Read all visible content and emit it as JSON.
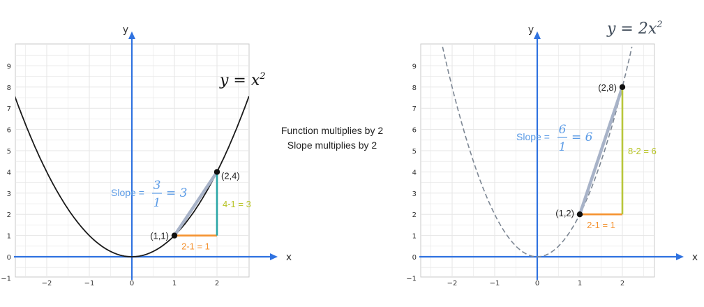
{
  "colors": {
    "axis": "#2f72e0",
    "grid": "#e6e6e6",
    "frame": "#c9c9c9",
    "curve_left": "#1a1a1a",
    "curve_right": "#7d8794",
    "run": "#f5922f",
    "rise_left": "#2aa6a6",
    "rise_right": "#b8c63a",
    "rise_label": "#b8c426",
    "slope_label": "#5b9be6",
    "secant": "#a8b3c8",
    "point": "#111111"
  },
  "center_text": {
    "line1": "Function multiplies by 2",
    "line2": "Slope multiplies by 2"
  },
  "chart_data": [
    {
      "type": "line",
      "title": "y = x²",
      "function": "y = x^2",
      "xlabel": "x",
      "ylabel": "y",
      "xlim": [
        -2.75,
        2.75
      ],
      "ylim": [
        -1,
        10
      ],
      "xticks": [
        "−2",
        "−1",
        "0",
        "1",
        "2"
      ],
      "yticks": [
        "−1",
        "0",
        "1",
        "2",
        "3",
        "4",
        "5",
        "6",
        "7",
        "8",
        "9"
      ],
      "grid": true,
      "curve_style": "solid",
      "points": [
        {
          "label": "(1,1)",
          "x": 1,
          "y": 1
        },
        {
          "label": "(2,4)",
          "x": 2,
          "y": 4
        }
      ],
      "run_label": "2-1 = 1",
      "rise_label": "4-1 = 3",
      "slope": {
        "prefix": "Slope =",
        "numerator": "3",
        "denominator": "1",
        "result": "= 3"
      }
    },
    {
      "type": "line",
      "title": "y = 2x²",
      "function": "y = 2x^2",
      "xlabel": "x",
      "ylabel": "y",
      "xlim": [
        -2.75,
        2.75
      ],
      "ylim": [
        -1,
        10
      ],
      "xticks": [
        "−2",
        "−1",
        "0",
        "1",
        "2"
      ],
      "yticks": [
        "−1",
        "0",
        "1",
        "2",
        "3",
        "4",
        "5",
        "6",
        "7",
        "8",
        "9"
      ],
      "grid": true,
      "curve_style": "dashed",
      "points": [
        {
          "label": "(1,2)",
          "x": 1,
          "y": 2
        },
        {
          "label": "(2,8)",
          "x": 2,
          "y": 8
        }
      ],
      "run_label": "2-1 = 1",
      "rise_label": "8-2 = 6",
      "slope": {
        "prefix": "Slope =",
        "numerator": "6",
        "denominator": "1",
        "result": "= 6"
      }
    }
  ]
}
